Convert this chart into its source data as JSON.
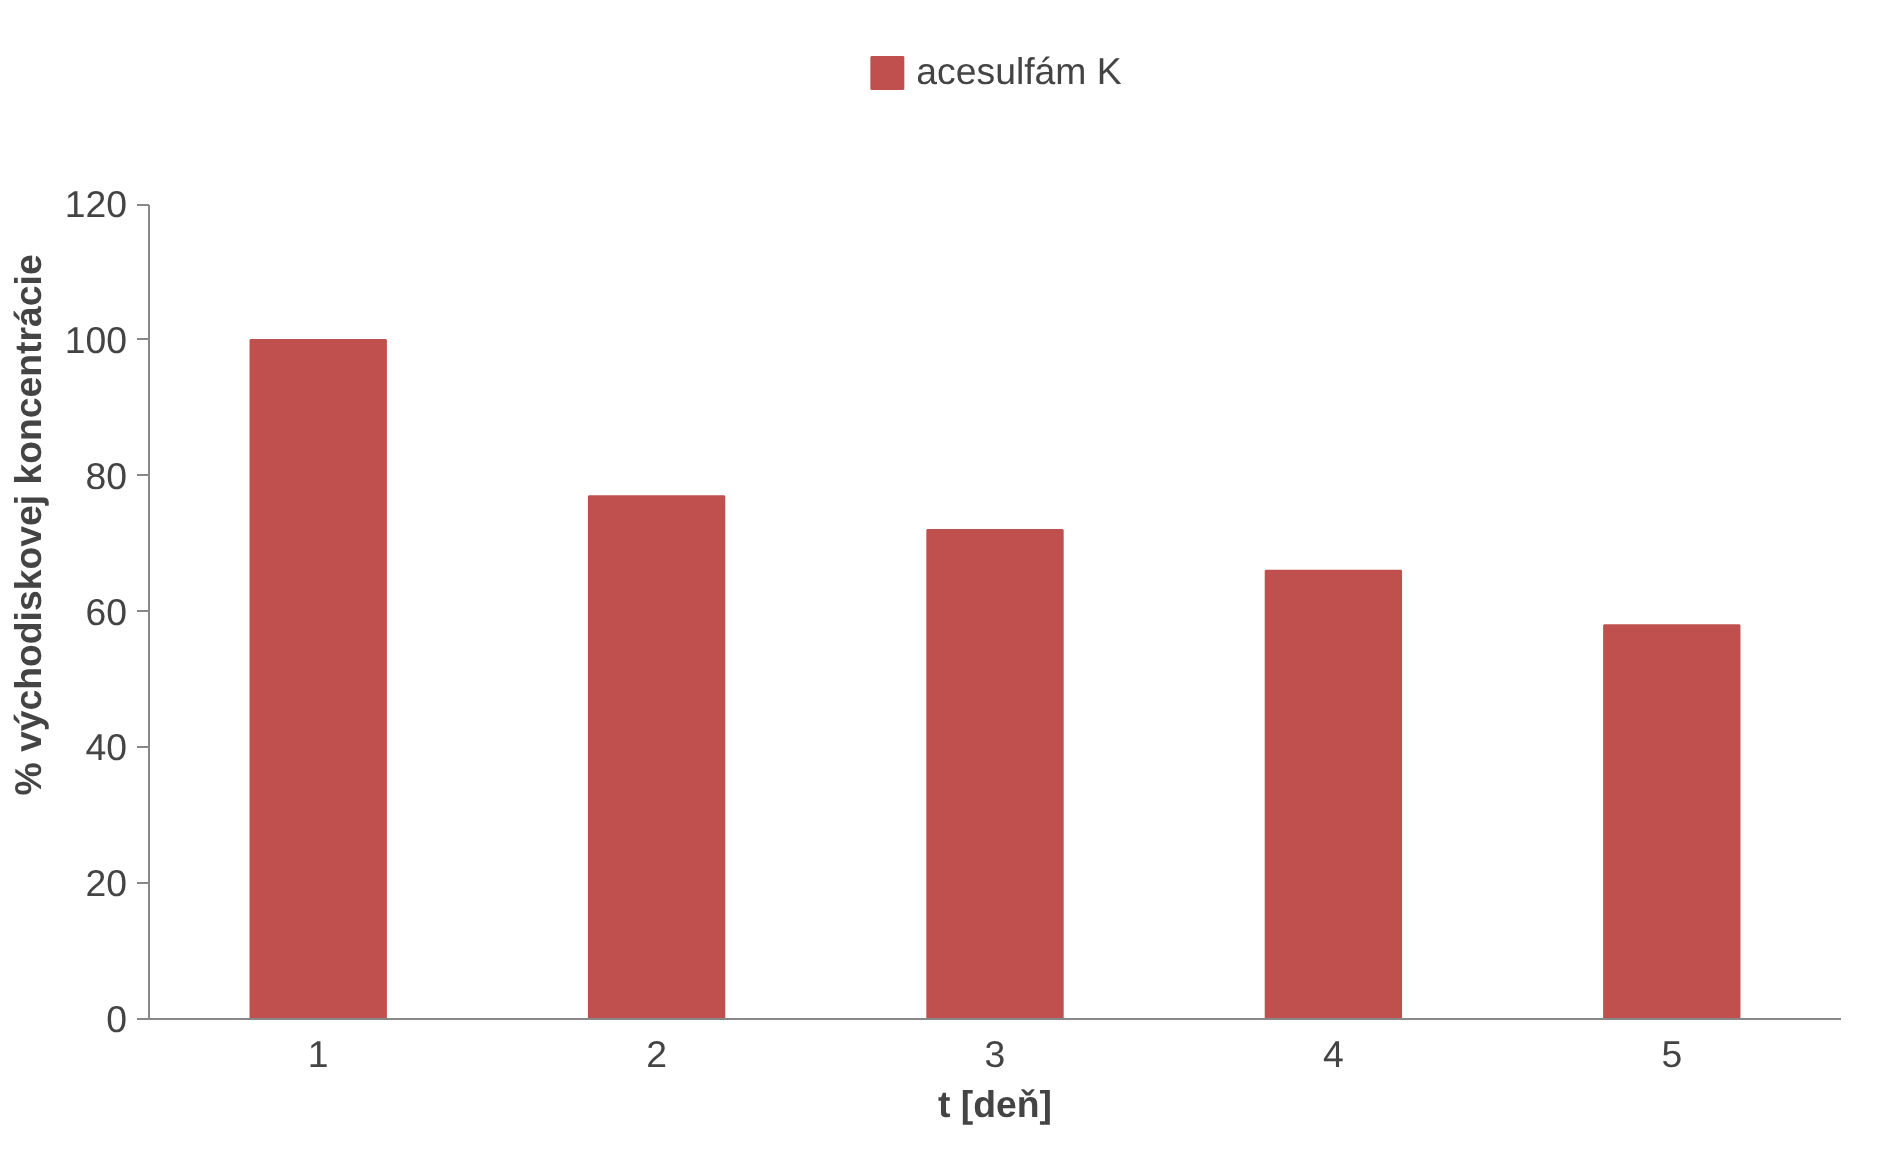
{
  "chart_data": {
    "type": "bar",
    "xlabel": "t [deň]",
    "ylabel": "% východiskovej koncentrácie",
    "categories": [
      "1",
      "2",
      "3",
      "4",
      "5"
    ],
    "series": [
      {
        "name": "acesulfám K",
        "color": "#c0504d",
        "values": [
          100,
          77,
          72,
          66,
          58
        ]
      }
    ],
    "ylim": [
      0,
      120
    ],
    "yticks": [
      0,
      20,
      40,
      60,
      80,
      100,
      120
    ],
    "grid": false,
    "legend": "top"
  }
}
